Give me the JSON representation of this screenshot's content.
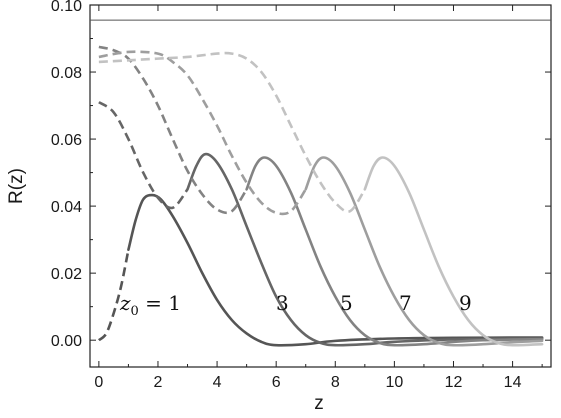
{
  "chart_data": {
    "type": "line",
    "title": "",
    "xlabel": "z",
    "ylabel": "R(z)",
    "xlim": [
      -0.3,
      15.3
    ],
    "ylim": [
      -0.008,
      0.1
    ],
    "grid": false,
    "x_ticks": [
      "0",
      "2",
      "4",
      "6",
      "8",
      "10",
      "12",
      "14"
    ],
    "y_ticks": [
      "0.00",
      "0.02",
      "0.04",
      "0.06",
      "0.08",
      "0.10"
    ],
    "reference_line": {
      "y": 0.0955
    },
    "annotations": {
      "first_label": {
        "var": "z",
        "sub": "0",
        "rest": " = 1"
      },
      "labels": [
        "3",
        "5",
        "7",
        "9"
      ]
    },
    "series": [
      {
        "z0": 1,
        "color": "#555555",
        "dashed": {
          "x": [
            0,
            0.25,
            0.5,
            0.75,
            1.0
          ],
          "y": [
            0.0,
            0.002,
            0.008,
            0.016,
            0.027
          ]
        },
        "solid": {
          "x": [
            1.0,
            1.25,
            1.5,
            1.8,
            2.1,
            2.5,
            3.0,
            3.5,
            4.0,
            4.5,
            5.0,
            5.5,
            6.0,
            7.0,
            8.0,
            10.0,
            12.0,
            15.0
          ],
          "y": [
            0.027,
            0.036,
            0.042,
            0.0433,
            0.042,
            0.037,
            0.029,
            0.02,
            0.012,
            0.006,
            0.002,
            -0.0005,
            -0.0015,
            -0.0012,
            -0.0002,
            0.0005,
            0.0007,
            0.0008
          ]
        }
      },
      {
        "z0": 3,
        "color": "#666666",
        "dashed": {
          "x": [
            0,
            0.5,
            1.0,
            1.5,
            2.0,
            2.5,
            3.0
          ],
          "y": [
            0.071,
            0.068,
            0.06,
            0.05,
            0.0425,
            0.0395,
            0.045
          ]
        },
        "solid": {
          "x": [
            3.0,
            3.3,
            3.6,
            4.0,
            4.5,
            5.0,
            5.5,
            6.0,
            6.5,
            7.0,
            7.5,
            8.0,
            9.0,
            10.0,
            12.0,
            15.0
          ],
          "y": [
            0.045,
            0.052,
            0.0555,
            0.053,
            0.045,
            0.034,
            0.023,
            0.013,
            0.006,
            0.0015,
            -0.0008,
            -0.0015,
            -0.0012,
            -0.0005,
            0.0002,
            0.0005
          ]
        }
      },
      {
        "z0": 5,
        "color": "#838383",
        "dashed": {
          "x": [
            0,
            0.5,
            1.0,
            1.5,
            2.0,
            2.5,
            3.0,
            3.5,
            4.0,
            4.5,
            5.0
          ],
          "y": [
            0.0875,
            0.0865,
            0.084,
            0.078,
            0.07,
            0.06,
            0.0505,
            0.0435,
            0.039,
            0.0385,
            0.045
          ]
        },
        "solid": {
          "x": [
            5.0,
            5.3,
            5.6,
            6.0,
            6.5,
            7.0,
            7.5,
            8.0,
            8.5,
            9.0,
            9.5,
            10.0,
            11.0,
            12.0,
            13.0,
            15.0
          ],
          "y": [
            0.045,
            0.052,
            0.0545,
            0.052,
            0.044,
            0.033,
            0.022,
            0.013,
            0.006,
            0.0015,
            -0.0008,
            -0.0015,
            -0.0012,
            -0.0005,
            0.0,
            0.0003
          ]
        }
      },
      {
        "z0": 7,
        "color": "#9e9e9e",
        "dashed": {
          "x": [
            0,
            1.0,
            2.0,
            2.5,
            3.0,
            3.5,
            4.0,
            4.5,
            5.0,
            5.5,
            6.0,
            6.5,
            7.0
          ],
          "y": [
            0.0845,
            0.086,
            0.0855,
            0.083,
            0.079,
            0.072,
            0.064,
            0.055,
            0.047,
            0.041,
            0.038,
            0.0385,
            0.045
          ]
        },
        "solid": {
          "x": [
            7.0,
            7.3,
            7.6,
            8.0,
            8.5,
            9.0,
            9.5,
            10.0,
            10.5,
            11.0,
            11.5,
            12.0,
            13.0,
            14.0,
            15.0
          ],
          "y": [
            0.045,
            0.052,
            0.0545,
            0.052,
            0.044,
            0.033,
            0.022,
            0.013,
            0.006,
            0.0015,
            -0.0008,
            -0.0015,
            -0.0012,
            -0.0006,
            -0.0002
          ]
        }
      },
      {
        "z0": 9,
        "color": "#c2c2c2",
        "dashed": {
          "x": [
            0,
            1.0,
            2.0,
            3.0,
            4.0,
            4.5,
            5.0,
            5.5,
            6.0,
            6.5,
            7.0,
            7.5,
            8.0,
            8.5,
            9.0
          ],
          "y": [
            0.083,
            0.0835,
            0.084,
            0.0845,
            0.0855,
            0.0855,
            0.084,
            0.08,
            0.073,
            0.064,
            0.055,
            0.047,
            0.041,
            0.0385,
            0.045
          ]
        },
        "solid": {
          "x": [
            9.0,
            9.3,
            9.6,
            10.0,
            10.5,
            11.0,
            11.5,
            12.0,
            12.5,
            13.0,
            13.5,
            14.0,
            15.0
          ],
          "y": [
            0.045,
            0.052,
            0.0545,
            0.052,
            0.044,
            0.033,
            0.022,
            0.013,
            0.006,
            0.0015,
            -0.0008,
            -0.0015,
            -0.0012
          ]
        }
      }
    ]
  }
}
